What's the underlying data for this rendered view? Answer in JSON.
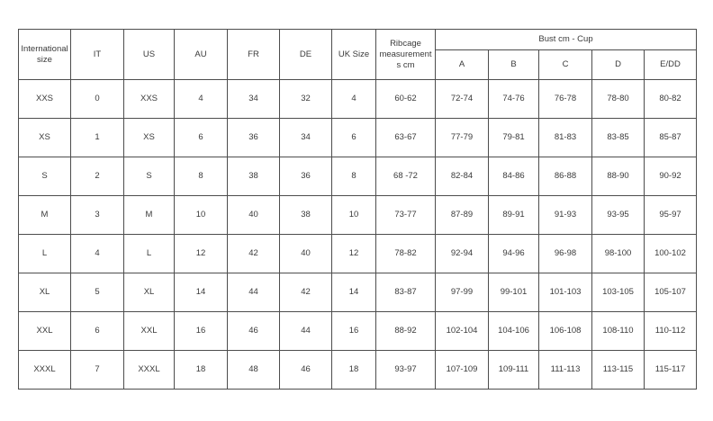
{
  "table": {
    "headers": {
      "international_size": "International size",
      "it": "IT",
      "us": "US",
      "au": "AU",
      "fr": "FR",
      "de": "DE",
      "uk_size": "UK Size",
      "ribcage": "Ribcage measurements cm",
      "bust_group": "Bust cm - Cup",
      "cups": [
        "A",
        "B",
        "C",
        "D",
        "E/DD"
      ]
    },
    "rows": [
      [
        "XXS",
        "0",
        "XXS",
        "4",
        "34",
        "32",
        "4",
        "60-62",
        "72-74",
        "74-76",
        "76-78",
        "78-80",
        "80-82"
      ],
      [
        "XS",
        "1",
        "XS",
        "6",
        "36",
        "34",
        "6",
        "63-67",
        "77-79",
        "79-81",
        "81-83",
        "83-85",
        "85-87"
      ],
      [
        "S",
        "2",
        "S",
        "8",
        "38",
        "36",
        "8",
        "68 -72",
        "82-84",
        "84-86",
        "86-88",
        "88-90",
        "90-92"
      ],
      [
        "M",
        "3",
        "M",
        "10",
        "40",
        "38",
        "10",
        "73-77",
        "87-89",
        "89-91",
        "91-93",
        "93-95",
        "95-97"
      ],
      [
        "L",
        "4",
        "L",
        "12",
        "42",
        "40",
        "12",
        "78-82",
        "92-94",
        "94-96",
        "96-98",
        "98-100",
        "100-102"
      ],
      [
        "XL",
        "5",
        "XL",
        "14",
        "44",
        "42",
        "14",
        "83-87",
        "97-99",
        "99-101",
        "101-103",
        "103-105",
        "105-107"
      ],
      [
        "XXL",
        "6",
        "XXL",
        "16",
        "46",
        "44",
        "16",
        "88-92",
        "102-104",
        "104-106",
        "106-108",
        "108-110",
        "110-112"
      ],
      [
        "XXXL",
        "7",
        "XXXL",
        "18",
        "48",
        "46",
        "18",
        "93-97",
        "107-109",
        "109-111",
        "111-113",
        "113-115",
        "115-117"
      ]
    ],
    "column_keys": [
      "international-size",
      "it",
      "us",
      "au",
      "fr",
      "de",
      "uk-size",
      "ribcage",
      "cup-a",
      "cup-b",
      "cup-c",
      "cup-d",
      "cup-e-dd"
    ],
    "colors": {
      "border": "#4d4d4d",
      "text": "#3a3a3a",
      "background": "#ffffff"
    }
  }
}
